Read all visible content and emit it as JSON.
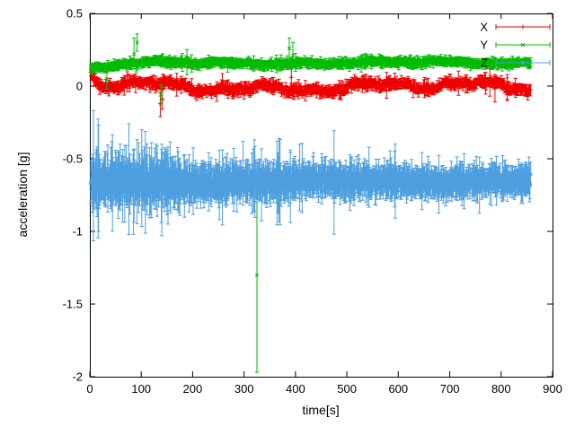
{
  "chart_data": {
    "type": "scatter",
    "subtype": "points-with-errorbars",
    "title": "",
    "xlabel": "time[s]",
    "ylabel": "acceleration [g]",
    "xlim": [
      0,
      900
    ],
    "ylim": [
      -2,
      0.5
    ],
    "xticks": [
      0,
      100,
      200,
      300,
      400,
      500,
      600,
      700,
      800,
      900
    ],
    "xtick_labels": [
      "0",
      "100",
      "200",
      "300",
      "400",
      "500",
      "600",
      "700",
      "800",
      "900"
    ],
    "yticks": [
      0.5,
      0,
      -0.5,
      -1,
      -1.5,
      -2
    ],
    "ytick_labels": [
      "0.5",
      "0",
      "-0.5",
      "-1",
      "-1.5",
      "-2"
    ],
    "grid": false,
    "legend_position": "top-right",
    "legend_labels": [
      "X",
      "Y",
      "Z"
    ],
    "series": [
      {
        "name": "X",
        "color": "#ee0000",
        "marker": "plus",
        "description": "X acceleration, noisy band around 0 g with small error bars",
        "gen": {
          "t_start": 2,
          "t_end": 857,
          "t_step": 1,
          "baseline": -0.005,
          "noise": 0.009,
          "waves": [
            {
              "amp": 0.018,
              "period": 640,
              "phase": 1.2
            },
            {
              "amp": 0.02,
              "period": 210,
              "phase": 4.0
            },
            {
              "amp": 0.013,
              "period": 88,
              "phase": 2.2
            },
            {
              "amp": 0.007,
              "period": 36,
              "phase": 0.5
            }
          ],
          "start_offset": 0.09,
          "start_tau": 14,
          "err_base": 0.02,
          "err_var": 0.012,
          "err_spike_p": 0.04
        },
        "outliers": [
          {
            "t": 137,
            "y": -0.12,
            "lo": -0.21,
            "hi": -0.04
          },
          {
            "t": 141,
            "y": -0.09,
            "lo": -0.16,
            "hi": -0.03
          },
          {
            "t": 392,
            "y": 0.06,
            "lo": -0.02,
            "hi": 0.13
          },
          {
            "t": 778,
            "y": 0.03,
            "lo": -0.07,
            "hi": 0.12
          },
          {
            "t": 788,
            "y": -0.01,
            "lo": -0.11,
            "hi": 0.08
          },
          {
            "t": 812,
            "y": 0.0,
            "lo": -0.09,
            "hi": 0.08
          }
        ]
      },
      {
        "name": "Y",
        "color": "#00bb00",
        "marker": "cross",
        "description": "Y acceleration, band around 0.15 g, one large outlier near t=325 reaching -1.97 g",
        "gen": {
          "t_start": 2,
          "t_end": 857,
          "t_step": 1,
          "baseline": 0.16,
          "noise": 0.007,
          "waves": [
            {
              "amp": 0.008,
              "period": 520,
              "phase": 0.3
            },
            {
              "amp": 0.006,
              "period": 140,
              "phase": 2.0
            },
            {
              "amp": 0.004,
              "period": 60,
              "phase": 1.1
            }
          ],
          "start_offset": -0.055,
          "start_tau": 45,
          "err_base": 0.018,
          "err_var": 0.01,
          "err_spike_p": 0.03
        },
        "outliers": [
          {
            "t": 33,
            "y": 0.05,
            "lo": -0.02,
            "hi": 0.12
          },
          {
            "t": 86,
            "y": 0.22,
            "lo": 0.12,
            "hi": 0.33
          },
          {
            "t": 92,
            "y": 0.3,
            "lo": 0.24,
            "hi": 0.36
          },
          {
            "t": 138,
            "y": -0.06,
            "lo": -0.13,
            "hi": 0.01
          },
          {
            "t": 325,
            "y": -1.3,
            "lo": -1.97,
            "hi": -0.6
          },
          {
            "t": 388,
            "y": 0.26,
            "lo": 0.19,
            "hi": 0.33
          },
          {
            "t": 395,
            "y": 0.21,
            "lo": 0.13,
            "hi": 0.3
          }
        ]
      },
      {
        "name": "Z",
        "color": "#4d9ede",
        "marker": "star",
        "description": "Z acceleration, dense noisy band around -0.65 g with larger error bars early on",
        "gen": {
          "t_start": 2,
          "t_end": 857,
          "t_step": 1,
          "baseline": -0.655,
          "noise": 0.02,
          "waves": [
            {
              "amp": 0.008,
              "period": 430,
              "phase": 1.0
            },
            {
              "amp": 0.006,
              "period": 160,
              "phase": 3.1
            }
          ],
          "err_base": 0.055,
          "err_var": 0.035,
          "err_extra": 0.1,
          "err_decay": 280,
          "err_spike_p": 0.06
        },
        "outliers": [
          {
            "t": 85,
            "y": -0.68,
            "lo": -1.02,
            "hi": -0.44
          },
          {
            "t": 140,
            "y": -0.67,
            "lo": -1.03,
            "hi": -0.4
          },
          {
            "t": 152,
            "y": -0.64,
            "lo": -0.95,
            "hi": -0.42
          },
          {
            "t": 252,
            "y": -0.66,
            "lo": -0.92,
            "hi": -0.44
          },
          {
            "t": 298,
            "y": -0.6,
            "lo": -0.82,
            "hi": -0.38
          },
          {
            "t": 320,
            "y": -0.62,
            "lo": -0.86,
            "hi": -0.37
          },
          {
            "t": 390,
            "y": -0.66,
            "lo": -0.94,
            "hi": -0.44
          }
        ]
      }
    ]
  }
}
